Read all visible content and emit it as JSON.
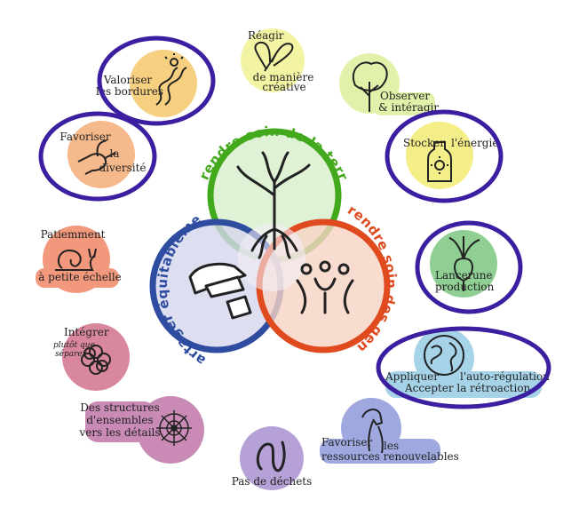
{
  "ethics": {
    "earth": "Prendre soin de la terre",
    "people": "Prendre soin des gens",
    "share": "Partager équitablement"
  },
  "colors": {
    "earth": "#43a91c",
    "people": "#e04a1f",
    "share": "#2f4da0",
    "highlight": "#3b1fa0"
  },
  "principles": {
    "observer": {
      "line1": "Observer",
      "line2": "& intéragir",
      "icon": "tree-icon"
    },
    "stocker": {
      "line1": "Stocker",
      "line2": "l'énergie",
      "icon": "bottle-sun-icon"
    },
    "lancer": {
      "line1": "Lancer",
      "line2": "une",
      "line3": "production",
      "icon": "radish-icon"
    },
    "appliquer": {
      "line1": "Appliquer",
      "line2": "l'auto-régulation",
      "line3": "Accepter la rétroaction",
      "icon": "globe-icon"
    },
    "favoriser_ressources": {
      "line1": "Favoriser",
      "line2": "les",
      "line3": "ressources renouvelables",
      "icon": "horse-icon"
    },
    "dechets": {
      "line1": "Pas de déchets",
      "icon": "worm-icon"
    },
    "structures": {
      "line1": "Des structures",
      "line2": "d'ensembles",
      "line3": "vers les détails",
      "icon": "spiderweb-icon"
    },
    "integrer": {
      "line1": "Intégrer",
      "line2": "plutôt que",
      "line3": "séparer",
      "icon": "flower-ring-icon"
    },
    "patiemment": {
      "line1": "Patiemment",
      "line2": "à petite échelle",
      "icon": "snail-icon"
    },
    "favoriser_diversite": {
      "line1": "Favoriser",
      "line2": "la",
      "line3": "diversité",
      "icon": "hummingbird-icon"
    },
    "valoriser": {
      "line1": "Valoriser",
      "line2": "les bordures",
      "icon": "river-sun-icon"
    },
    "reagir": {
      "line1": "Réagir",
      "line2": "de manière",
      "line3": "créative",
      "icon": "butterfly-icon"
    }
  }
}
